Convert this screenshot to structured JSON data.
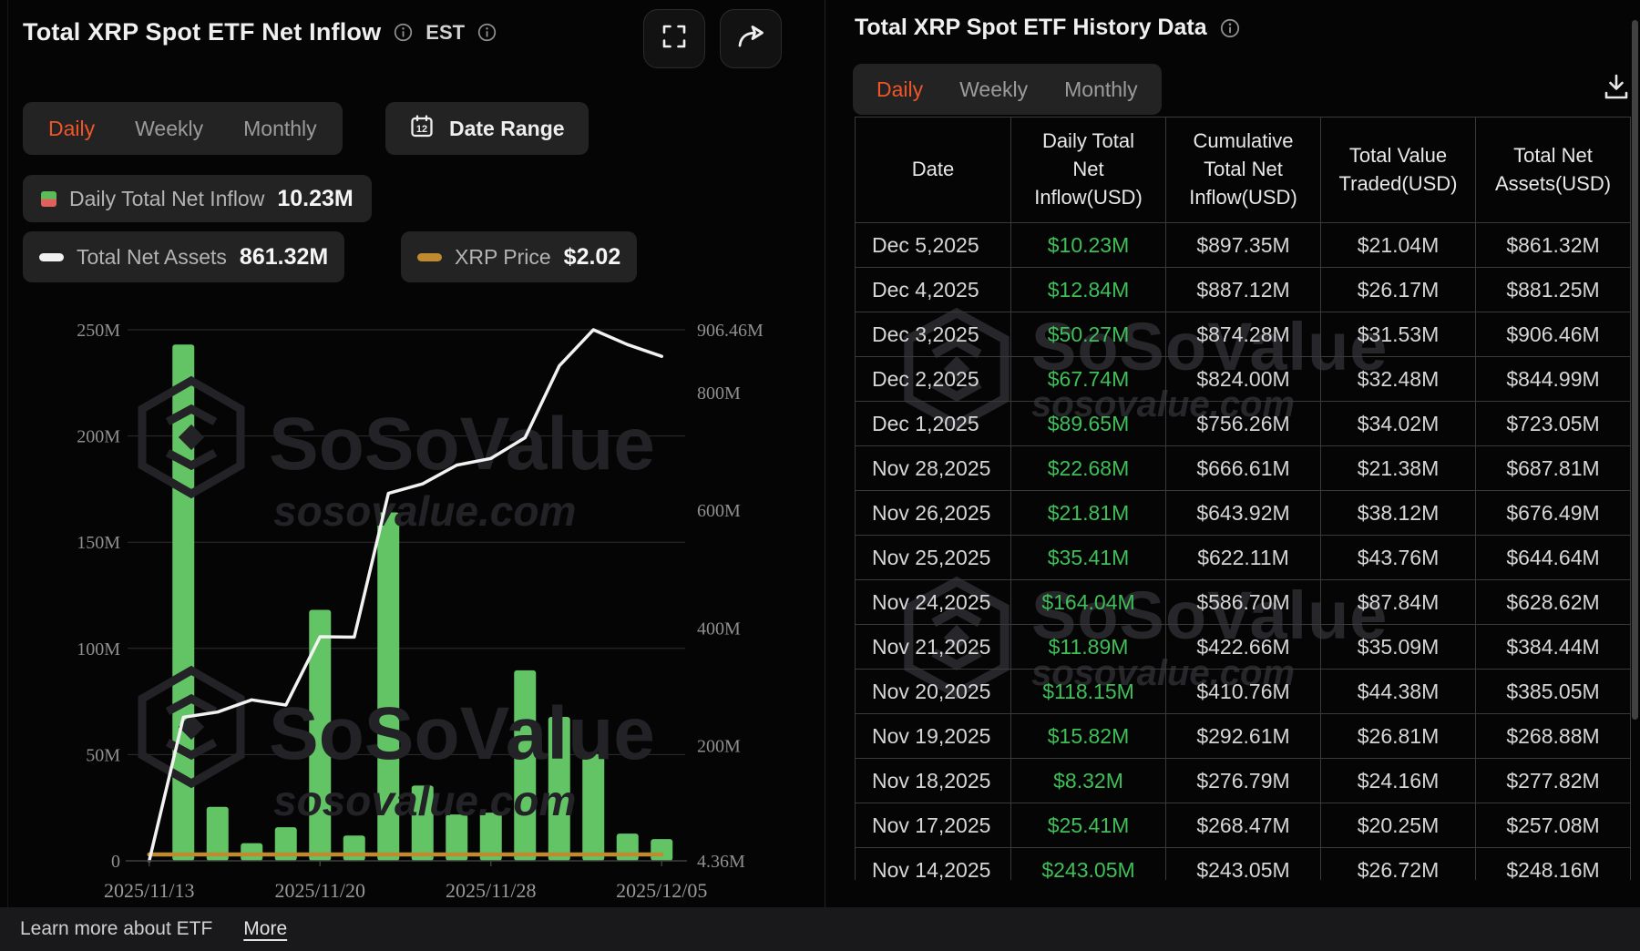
{
  "watermark": {
    "brand": "SoSoValue",
    "domain": "sosovalue.com"
  },
  "colors": {
    "accent_orange": "#ee5529",
    "bar_green": "#63c465",
    "value_green": "#3fbf58",
    "line_white": "#f2f2f2",
    "price_gold": "#c08a2e",
    "axis_text": "#8f8f8f",
    "grid_line": "#2e2e2e",
    "watermark_gray": "#232327",
    "legend_red": "#e2605c"
  },
  "left_panel": {
    "title": "Total XRP Spot ETF Net Inflow",
    "timezone_label": "EST",
    "tabs": {
      "items": [
        "Daily",
        "Weekly",
        "Monthly"
      ],
      "active": "Daily"
    },
    "date_range_label": "Date Range",
    "legend": [
      {
        "label": "Daily Total Net Inflow",
        "value": "10.23M"
      },
      {
        "label": "Total Net Assets",
        "value": "861.32M"
      },
      {
        "label": "XRP Price",
        "value": "$2.02"
      }
    ]
  },
  "chart_data": {
    "type": "bar+line dual-axis",
    "x": [
      "2025/11/13",
      "2025/11/14",
      "2025/11/17",
      "2025/11/18",
      "2025/11/19",
      "2025/11/20",
      "2025/11/21",
      "2025/11/24",
      "2025/11/25",
      "2025/11/26",
      "2025/11/28",
      "2025/12/01",
      "2025/12/02",
      "2025/12/03",
      "2025/12/04",
      "2025/12/05"
    ],
    "x_tick_labels": [
      "2025/11/13",
      "2025/11/20",
      "2025/11/28",
      "2025/12/05"
    ],
    "x_tick_slots": [
      0,
      5,
      10,
      15
    ],
    "series": [
      {
        "name": "Daily Total Net Inflow",
        "type": "bar",
        "axis": "left",
        "unit": "M USD",
        "values": [
          0,
          243.05,
          25.41,
          8.32,
          15.82,
          118.15,
          11.89,
          164.04,
          35.41,
          21.81,
          22.68,
          89.65,
          67.74,
          50.27,
          12.84,
          10.23
        ]
      },
      {
        "name": "Total Net Assets",
        "type": "line",
        "axis": "right",
        "unit": "M USD",
        "values": [
          4.36,
          248.16,
          257.08,
          277.82,
          268.88,
          385.05,
          384.44,
          628.62,
          644.64,
          676.49,
          687.81,
          723.05,
          844.99,
          906.46,
          881.25,
          861.32
        ]
      },
      {
        "name": "XRP Price",
        "type": "line",
        "axis": "hidden",
        "unit": "USD",
        "current_value": "$2.02",
        "appearance": "flat line hugging the zero baseline"
      }
    ],
    "left_axis": {
      "min": 0,
      "max": 250,
      "tick_labels": [
        "250M",
        "200M",
        "150M",
        "100M",
        "50M",
        "0"
      ],
      "tick_values": [
        250,
        200,
        150,
        100,
        50,
        0
      ]
    },
    "right_axis": {
      "min": 4.36,
      "max": 906.46,
      "tick_labels": [
        "906.46M",
        "800M",
        "600M",
        "400M",
        "200M",
        "4.36M"
      ],
      "tick_values": [
        906.46,
        800,
        600,
        400,
        200,
        4.36
      ]
    },
    "grid": true,
    "legend_position": "top-left pills"
  },
  "right_panel": {
    "title": "Total XRP Spot ETF History Data",
    "tabs": {
      "items": [
        "Daily",
        "Weekly",
        "Monthly"
      ],
      "active": "Daily"
    },
    "table": {
      "headers": [
        "Date",
        "Daily Total\nNet\nInflow(USD)",
        "Cumulative\nTotal Net\nInflow(USD)",
        "Total Value\nTraded(USD)",
        "Total Net\nAssets(USD)"
      ],
      "rows": [
        [
          "Dec 5,2025",
          "$10.23M",
          "$897.35M",
          "$21.04M",
          "$861.32M"
        ],
        [
          "Dec 4,2025",
          "$12.84M",
          "$887.12M",
          "$26.17M",
          "$881.25M"
        ],
        [
          "Dec 3,2025",
          "$50.27M",
          "$874.28M",
          "$31.53M",
          "$906.46M"
        ],
        [
          "Dec 2,2025",
          "$67.74M",
          "$824.00M",
          "$32.48M",
          "$844.99M"
        ],
        [
          "Dec 1,2025",
          "$89.65M",
          "$756.26M",
          "$34.02M",
          "$723.05M"
        ],
        [
          "Nov 28,2025",
          "$22.68M",
          "$666.61M",
          "$21.38M",
          "$687.81M"
        ],
        [
          "Nov 26,2025",
          "$21.81M",
          "$643.92M",
          "$38.12M",
          "$676.49M"
        ],
        [
          "Nov 25,2025",
          "$35.41M",
          "$622.11M",
          "$43.76M",
          "$644.64M"
        ],
        [
          "Nov 24,2025",
          "$164.04M",
          "$586.70M",
          "$87.84M",
          "$628.62M"
        ],
        [
          "Nov 21,2025",
          "$11.89M",
          "$422.66M",
          "$35.09M",
          "$384.44M"
        ],
        [
          "Nov 20,2025",
          "$118.15M",
          "$410.76M",
          "$44.38M",
          "$385.05M"
        ],
        [
          "Nov 19,2025",
          "$15.82M",
          "$292.61M",
          "$26.81M",
          "$268.88M"
        ],
        [
          "Nov 18,2025",
          "$8.32M",
          "$276.79M",
          "$24.16M",
          "$277.82M"
        ],
        [
          "Nov 17,2025",
          "$25.41M",
          "$268.47M",
          "$20.25M",
          "$257.08M"
        ],
        [
          "Nov 14,2025",
          "$243.05M",
          "$243.05M",
          "$26.72M",
          "$248.16M"
        ]
      ]
    }
  },
  "footer": {
    "learn_text": "Learn more about ETF",
    "more_label": "More"
  }
}
